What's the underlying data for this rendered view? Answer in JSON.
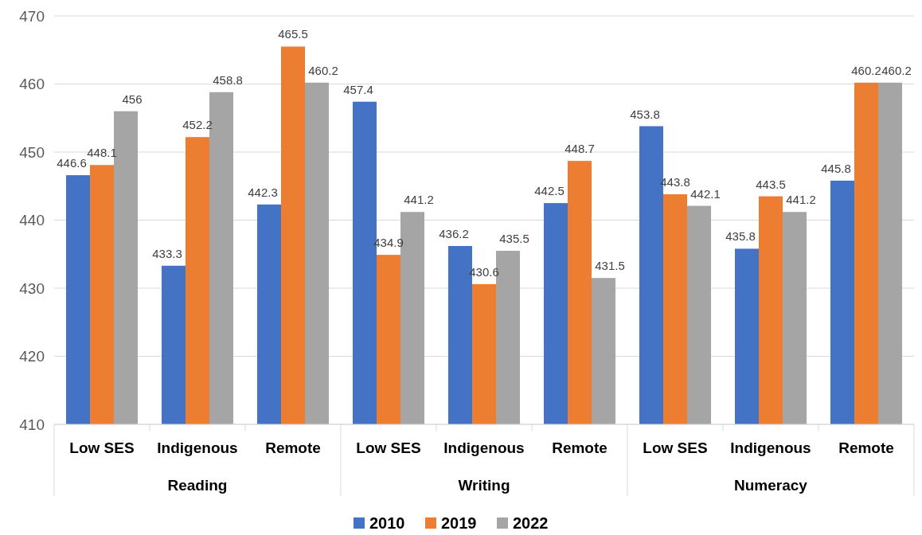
{
  "chart_data": {
    "type": "bar",
    "categories": [
      "Low SES",
      "Indigenous",
      "Remote",
      "Low SES",
      "Indigenous",
      "Remote",
      "Low SES",
      "Indigenous",
      "Remote"
    ],
    "series": [
      {
        "name": "2010",
        "color": "#4472c4",
        "values": [
          446.6,
          433.3,
          442.3,
          457.4,
          436.2,
          442.5,
          453.8,
          435.8,
          445.8
        ]
      },
      {
        "name": "2019",
        "color": "#ed7d31",
        "values": [
          448.1,
          452.2,
          465.5,
          434.9,
          430.6,
          448.7,
          443.8,
          443.5,
          460.2
        ]
      },
      {
        "name": "2022",
        "color": "#a5a5a5",
        "values": [
          456,
          458.8,
          460.2,
          441.2,
          435.5,
          431.5,
          442.1,
          441.2,
          460.2
        ]
      }
    ],
    "annotations": [
      "Reading",
      "Writing",
      "Numeracy"
    ],
    "ylim": [
      410,
      470
    ],
    "yticks": [
      410,
      420,
      430,
      440,
      450,
      460,
      470
    ],
    "grid": "y",
    "legend": "bottom",
    "data_labels": true
  }
}
